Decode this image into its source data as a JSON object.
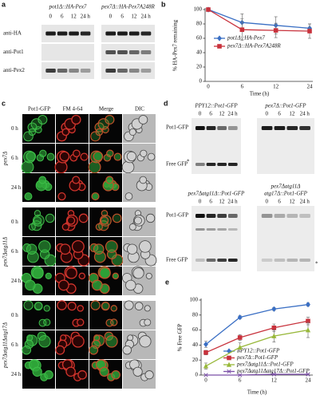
{
  "figure": {
    "a": {
      "label": "a",
      "blots": [
        {
          "title": "pot1Δ::HA-Pex7"
        },
        {
          "title": "pex7Δ::HA-Pex7A248R"
        }
      ],
      "times": [
        "0",
        "6",
        "12",
        "24 h"
      ],
      "rows": [
        "anti-HA",
        "anti-Pot1",
        "anti-Pex2"
      ]
    },
    "c": {
      "label": "c",
      "columns": [
        "Pot1-GFP",
        "FM 4-64",
        "Merge",
        "DIC"
      ],
      "groups": [
        {
          "name": "pex7Δ",
          "rows": [
            "0 h",
            "6 h",
            "24 h"
          ]
        },
        {
          "name": "pex7Δatg11Δ",
          "rows": [
            "0 h",
            "6 h",
            "24 h"
          ]
        },
        {
          "name": "pex7Δatg11Δatg17Δ",
          "rows": [
            "0 h",
            "6 h",
            "24 h"
          ]
        }
      ]
    },
    "d": {
      "label": "d",
      "blots": [
        {
          "title": [
            "PPY12::Pot1-GFP"
          ]
        },
        {
          "title": [
            "pex7Δ::Pot1-GFP"
          ]
        },
        {
          "title": [
            "pex7Δatg11Δ::Pot1-GFP"
          ]
        },
        {
          "title": [
            "pex7Δatg11Δ",
            "atg17Δ::Pot1-GFP"
          ]
        }
      ],
      "times": [
        "0",
        "6",
        "12",
        "24 h"
      ],
      "bands": [
        "Pot1-GFP",
        "Free GFP"
      ],
      "asterisk": "*"
    }
  },
  "chart_data": [
    {
      "type": "line",
      "label": "b",
      "y_label": "% HA-Pex7 remaining",
      "x_label": "Time (h)",
      "categories": [
        "0",
        "6",
        "12",
        "24"
      ],
      "ylim": [
        0,
        100
      ],
      "yticks": [
        0,
        20,
        40,
        60,
        80,
        100
      ],
      "series": [
        {
          "name": "pot1Δ::HA-Pex7",
          "color": "#3a6fc4",
          "marker": "diamond",
          "values": [
            100,
            82,
            78,
            74
          ],
          "errors": [
            0,
            12,
            12,
            6
          ]
        },
        {
          "name": "pex7Δ::HA-Pex7A248R",
          "color": "#c8323c",
          "marker": "square",
          "values": [
            100,
            72,
            71,
            70
          ],
          "errors": [
            0,
            15,
            10,
            10
          ]
        }
      ]
    },
    {
      "type": "line",
      "label": "e",
      "y_label": "% Free GFP",
      "x_label": "Time (h)",
      "categories": [
        "0",
        "6",
        "12",
        "24"
      ],
      "ylim": [
        0,
        100
      ],
      "yticks": [
        0,
        20,
        40,
        60,
        80,
        100
      ],
      "series": [
        {
          "name": "PPY12::Pot1-GFP",
          "color": "#3a6fc4",
          "marker": "diamond",
          "values": [
            41,
            77,
            88,
            94
          ],
          "errors": [
            4,
            2,
            2,
            2
          ]
        },
        {
          "name": "pex7Δ::Pot1-GFP",
          "color": "#c8323c",
          "marker": "square",
          "values": [
            30,
            50,
            63,
            72
          ],
          "errors": [
            3,
            4,
            5,
            5
          ]
        },
        {
          "name": "pex7Δatg11Δ::Pot1-GFP",
          "color": "#98b83a",
          "marker": "triangle",
          "values": [
            12,
            37,
            52,
            60
          ],
          "errors": [
            4,
            6,
            8,
            10
          ]
        },
        {
          "name": "pex7Δatg11Δatg17Δ::Pot1-GFP",
          "color": "#7b4fa8",
          "marker": "x",
          "values": [
            0,
            0,
            1,
            1
          ],
          "errors": [
            0,
            0,
            0,
            0
          ]
        }
      ]
    }
  ]
}
